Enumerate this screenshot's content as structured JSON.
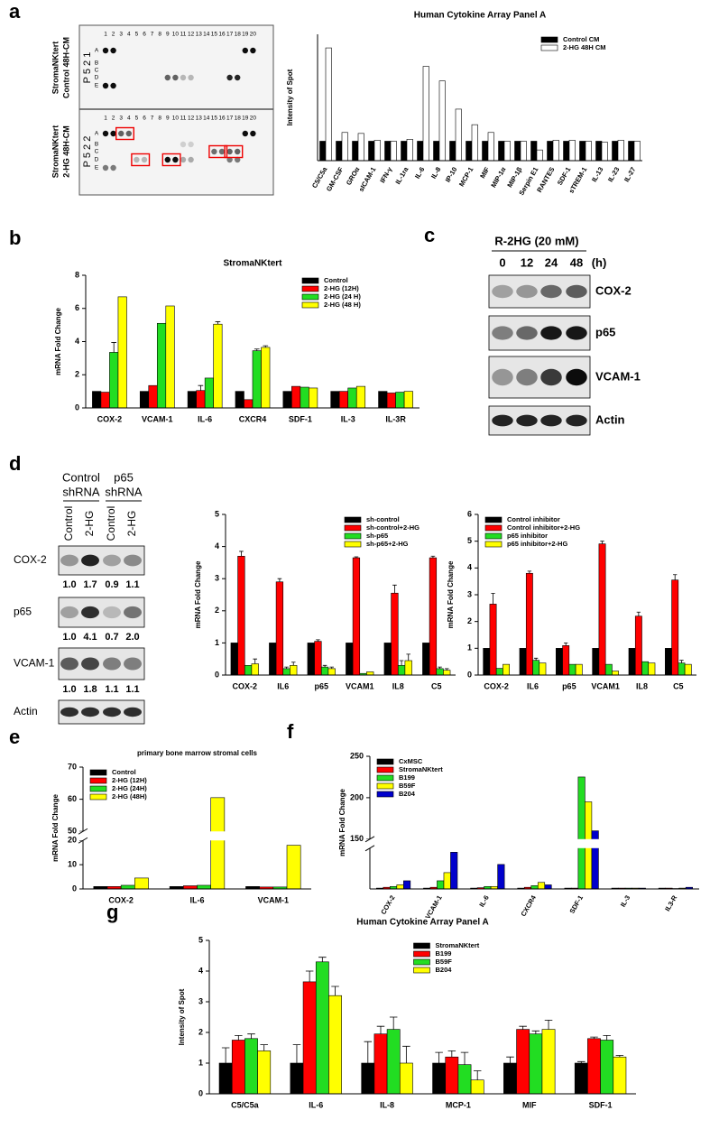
{
  "panel_labels": [
    "a",
    "b",
    "c",
    "d",
    "e",
    "f",
    "g"
  ],
  "array": {
    "rows": [
      "A",
      "B",
      "C",
      "D",
      "E"
    ],
    "columns": [
      1,
      2,
      3,
      4,
      5,
      6,
      7,
      8,
      9,
      10,
      11,
      12,
      13,
      14,
      15,
      16,
      17,
      18,
      19,
      20
    ],
    "blocks": [
      {
        "condition": [
          "StromaNKtert",
          "Control 48H-CM"
        ],
        "id": "P 5 2 1"
      },
      {
        "condition": [
          "StromaNKtert",
          "2-HG 48H-CM"
        ],
        "id": "P 5 2 2"
      }
    ]
  },
  "blot_c": {
    "treatment": "R-2HG (20 mM)",
    "times": [
      0,
      12,
      24,
      48
    ],
    "unit": "(h)",
    "rows": [
      "COX-2",
      "p65",
      "VCAM-1",
      "Actin"
    ]
  },
  "blot_d": {
    "groups": [
      [
        "Control",
        "shRNA"
      ],
      [
        "p65",
        "shRNA"
      ]
    ],
    "lanes": [
      "Control",
      "2-HG",
      "Control",
      "2-HG"
    ],
    "rows": [
      {
        "label": "COX-2",
        "quant": [
          "1.0",
          "1.7",
          "0.9",
          "1.1"
        ]
      },
      {
        "label": "p65",
        "quant": [
          "1.0",
          "4.1",
          "0.7",
          "2.0"
        ]
      },
      {
        "label": "VCAM-1",
        "quant": [
          "1.0",
          "1.8",
          "1.1",
          "1.1"
        ]
      },
      {
        "label": "Actin"
      }
    ]
  },
  "chart_data": [
    {
      "type": "bar",
      "title": "Human Cytokine Array Panel A",
      "y_label": "Intensity of Spot",
      "categories": [
        "C5/C5a",
        "GM-CSF",
        "GROα",
        "sICAM-1",
        "IFN-γ",
        "IL-1ra",
        "IL-6",
        "IL-8",
        "IP-10",
        "MCP-1",
        "MIF",
        "MIP-1α",
        "MIP-1β",
        "Serpin E1",
        "RANTES",
        "SDF-1",
        "sTREM-1",
        "IL-13",
        "IL-23",
        "IL-27"
      ],
      "series": [
        {
          "name": "Control CM",
          "color": "#000000",
          "values": [
            1,
            1,
            1,
            1,
            1,
            1,
            1,
            1,
            1,
            1,
            1,
            1,
            1,
            1,
            1,
            1,
            1,
            1,
            1,
            1
          ]
        },
        {
          "name": "2-HG 48H CM",
          "color": "#ffffff",
          "values": [
            5.8,
            1.45,
            1.4,
            1.05,
            1.0,
            1.1,
            4.85,
            4.1,
            2.65,
            1.85,
            1.45,
            1.0,
            1.0,
            0.55,
            1.05,
            1.05,
            1.0,
            0.95,
            1.05,
            1.0
          ]
        }
      ],
      "ylim": [
        0,
        6.5
      ],
      "legend": "upper right",
      "x_tick_rotation": 60
    },
    {
      "type": "bar",
      "title": "StromaNKtert",
      "y_label": "mRNA Fold Change",
      "categories": [
        "COX-2",
        "VCAM-1",
        "IL-6",
        "CXCR4",
        "SDF-1",
        "IL-3",
        "IL-3R"
      ],
      "series": [
        {
          "name": "Control",
          "color": "#000000",
          "values": [
            1,
            1,
            1,
            1,
            1,
            1,
            1
          ]
        },
        {
          "name": "2-HG (12H)",
          "color": "#ff0000",
          "values": [
            0.95,
            1.35,
            1.05,
            0.5,
            1.3,
            1,
            0.9
          ],
          "errors": [
            null,
            null,
            0.3,
            null,
            null,
            null,
            null
          ]
        },
        {
          "name": "2-HG (24 H)",
          "color": "#22dd22",
          "values": [
            3.35,
            5.1,
            1.8,
            3.45,
            1.25,
            1.2,
            0.95
          ],
          "errors": [
            0.6,
            null,
            null,
            0.1,
            null,
            null,
            null
          ]
        },
        {
          "name": "2-HG (48 H)",
          "color": "#ffff00",
          "values": [
            6.7,
            6.15,
            5.05,
            3.65,
            1.2,
            1.3,
            1.0
          ],
          "errors": [
            null,
            null,
            0.15,
            0.1,
            null,
            null,
            null
          ]
        }
      ],
      "ylim": [
        0,
        8
      ],
      "yticks": [
        0,
        2,
        4,
        6,
        8
      ],
      "legend": "upper right"
    },
    {
      "type": "bar",
      "y_label": "mRNA Fold Change",
      "categories": [
        "COX-2",
        "IL6",
        "p65",
        "VCAM1",
        "IL8",
        "C5"
      ],
      "series": [
        {
          "name": "sh-control",
          "color": "#000000",
          "values": [
            1,
            1,
            1,
            1,
            1,
            1
          ]
        },
        {
          "name": "sh-control+2-HG",
          "color": "#ff0000",
          "values": [
            3.7,
            2.9,
            1.05,
            3.65,
            2.55,
            3.65
          ],
          "errors": [
            0.15,
            0.1,
            0.05,
            0.03,
            0.25,
            0.05
          ]
        },
        {
          "name": "sh-p65",
          "color": "#22dd22",
          "values": [
            0.3,
            0.2,
            0.25,
            0.05,
            0.3,
            0.2
          ],
          "errors": [
            null,
            0.05,
            0.05,
            null,
            0.15,
            0.05
          ]
        },
        {
          "name": "sh-p65+2-HG",
          "color": "#ffff00",
          "values": [
            0.35,
            0.3,
            0.2,
            0.1,
            0.45,
            0.15
          ],
          "errors": [
            0.15,
            0.1,
            0.05,
            null,
            0.2,
            0.05
          ]
        }
      ],
      "ylim": [
        0,
        5
      ],
      "yticks": [
        0,
        1,
        2,
        3,
        4,
        5
      ],
      "legend": "upper right"
    },
    {
      "type": "bar",
      "y_label": "mRNA Fold Change",
      "categories": [
        "COX-2",
        "IL6",
        "p65",
        "VCAM1",
        "IL8",
        "C5"
      ],
      "series": [
        {
          "name": "Control inhibitor",
          "color": "#000000",
          "values": [
            1,
            1,
            1,
            1,
            1,
            1
          ]
        },
        {
          "name": "Control inhibitor+2-HG",
          "color": "#ff0000",
          "values": [
            2.65,
            3.8,
            1.1,
            4.9,
            2.2,
            3.55
          ],
          "errors": [
            0.4,
            0.08,
            0.1,
            0.1,
            0.15,
            0.2
          ]
        },
        {
          "name": "p65 inhibitor",
          "color": "#22dd22",
          "values": [
            0.25,
            0.55,
            0.4,
            0.4,
            0.5,
            0.45
          ],
          "errors": [
            null,
            0.08,
            null,
            null,
            null,
            0.1
          ]
        },
        {
          "name": "p65 inhibitor+2-HG",
          "color": "#ffff00",
          "values": [
            0.4,
            0.45,
            0.4,
            0.15,
            0.45,
            0.4
          ]
        }
      ],
      "ylim": [
        0,
        6
      ],
      "yticks": [
        0,
        1,
        2,
        3,
        4,
        5,
        6
      ],
      "legend": "upper left"
    },
    {
      "type": "bar",
      "title": "primary bone marrow stromal cells",
      "y_label": "mRNA Fold Change",
      "categories": [
        "COX-2",
        "IL-6",
        "VCAM-1"
      ],
      "series": [
        {
          "name": "Control",
          "color": "#000000",
          "values": [
            1,
            1,
            1
          ]
        },
        {
          "name": "2-HG (12H)",
          "color": "#ff0000",
          "values": [
            1,
            1.3,
            0.8
          ]
        },
        {
          "name": "2-HG (24H)",
          "color": "#22dd22",
          "values": [
            1.5,
            1.5,
            0.8
          ]
        },
        {
          "name": "2-HG (48H)",
          "color": "#ffff00",
          "values": [
            4.5,
            60.5,
            18
          ]
        }
      ],
      "ylim": [
        0,
        70
      ],
      "ybreak": [
        20,
        50
      ],
      "yticks": [
        0,
        10,
        20,
        50,
        60,
        70
      ],
      "legend": "upper left"
    },
    {
      "type": "bar",
      "y_label": "mRNA Fold Change",
      "categories": [
        "COX-2",
        "VCAM-1",
        "IL-6",
        "CXCR4",
        "SDF-1",
        "IL-3",
        "IL3-R"
      ],
      "series": [
        {
          "name": "CxMSC",
          "color": "#000000",
          "values": [
            1,
            1,
            1,
            1,
            1,
            1,
            1
          ]
        },
        {
          "name": "StromaNKtert",
          "color": "#ff0000",
          "values": [
            2,
            2,
            1.5,
            2,
            1,
            1,
            1
          ]
        },
        {
          "name": "B199",
          "color": "#22dd22",
          "values": [
            3,
            10,
            3,
            4,
            225,
            1,
            0.5
          ]
        },
        {
          "name": "B59F",
          "color": "#ffff00",
          "values": [
            5,
            20,
            3,
            8,
            195,
            1,
            1
          ]
        },
        {
          "name": "B204",
          "color": "#0000cc",
          "values": [
            10,
            45,
            30,
            5,
            160,
            1,
            2
          ]
        }
      ],
      "ylim": [
        0,
        250
      ],
      "ybreak": [
        50,
        150
      ],
      "yticks": [
        150,
        200,
        250
      ],
      "legend": "upper left",
      "x_tick_rotation": 60
    },
    {
      "type": "bar",
      "title": "Human Cytokine Array Panel A",
      "y_label": "Intensity of Spot",
      "categories": [
        "C5/C5a",
        "IL-6",
        "IL-8",
        "MCP-1",
        "MIF",
        "SDF-1"
      ],
      "series": [
        {
          "name": "StromaNKtert",
          "color": "#000000",
          "values": [
            1,
            1,
            1,
            1,
            1,
            1
          ],
          "errors": [
            0.5,
            0.6,
            0.7,
            0.35,
            0.2,
            0.05
          ]
        },
        {
          "name": "B199",
          "color": "#ff0000",
          "values": [
            1.75,
            3.65,
            1.95,
            1.2,
            2.1,
            1.8
          ],
          "errors": [
            0.15,
            0.35,
            0.25,
            0.2,
            0.1,
            0.05
          ]
        },
        {
          "name": "B59F",
          "color": "#22dd22",
          "values": [
            1.8,
            4.3,
            2.1,
            0.95,
            1.95,
            1.75
          ],
          "errors": [
            0.15,
            0.15,
            0.4,
            0.4,
            0.1,
            0.15
          ]
        },
        {
          "name": "B204",
          "color": "#ffff00",
          "values": [
            1.4,
            3.2,
            1.0,
            0.45,
            2.1,
            1.2
          ],
          "errors": [
            0.2,
            0.3,
            0.55,
            0.3,
            0.3,
            0.05
          ]
        }
      ],
      "ylim": [
        0,
        5
      ],
      "yticks": [
        0,
        1,
        2,
        3,
        4,
        5
      ],
      "legend": "upper center"
    }
  ]
}
